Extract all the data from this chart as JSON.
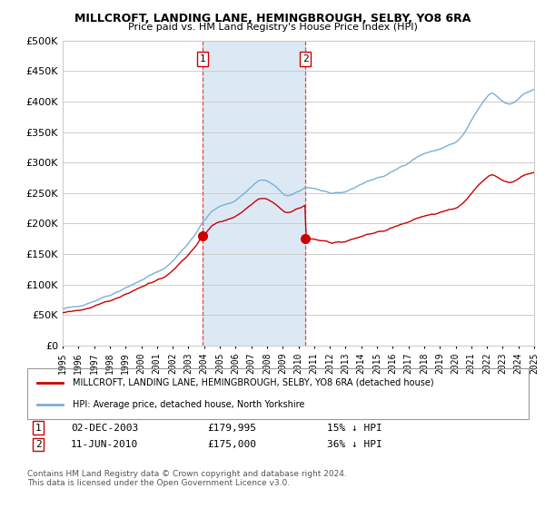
{
  "title": "MILLCROFT, LANDING LANE, HEMINGBROUGH, SELBY, YO8 6RA",
  "subtitle": "Price paid vs. HM Land Registry's House Price Index (HPI)",
  "legend_line1": "MILLCROFT, LANDING LANE, HEMINGBROUGH, SELBY, YO8 6RA (detached house)",
  "legend_line2": "HPI: Average price, detached house, North Yorkshire",
  "footnote": "Contains HM Land Registry data © Crown copyright and database right 2024.\nThis data is licensed under the Open Government Licence v3.0.",
  "sale1_label": "1",
  "sale1_date": "02-DEC-2003",
  "sale1_price": "£179,995",
  "sale1_hpi": "15% ↓ HPI",
  "sale2_label": "2",
  "sale2_date": "11-JUN-2010",
  "sale2_price": "£175,000",
  "sale2_hpi": "36% ↓ HPI",
  "sale1_x": 2003.92,
  "sale1_price_val": 179995,
  "sale2_x": 2010.44,
  "sale2_price_val": 175000,
  "background_color": "#ffffff",
  "highlight_color": "#dce9f5",
  "grid_color": "#cccccc",
  "hpi_line_color": "#7bafd4",
  "sale_line_color": "#cc0000",
  "sale_marker_color": "#cc0000",
  "dashed_line_color": "#ee4444",
  "ylim": [
    0,
    500000
  ],
  "yticks": [
    0,
    50000,
    100000,
    150000,
    200000,
    250000,
    300000,
    350000,
    400000,
    450000,
    500000
  ],
  "xmin": 1995,
  "xmax": 2025,
  "hpi_base_years": [
    1995.0,
    1995.5,
    1996.0,
    1996.5,
    1997.0,
    1997.5,
    1998.0,
    1998.5,
    1999.0,
    1999.5,
    2000.0,
    2000.5,
    2001.0,
    2001.5,
    2002.0,
    2002.5,
    2003.0,
    2003.5,
    2004.0,
    2004.5,
    2005.0,
    2005.5,
    2006.0,
    2006.5,
    2007.0,
    2007.3,
    2007.6,
    2008.0,
    2008.5,
    2009.0,
    2009.5,
    2010.0,
    2010.5,
    2011.0,
    2011.5,
    2012.0,
    2012.5,
    2013.0,
    2013.5,
    2014.0,
    2014.5,
    2015.0,
    2015.5,
    2016.0,
    2016.5,
    2017.0,
    2017.5,
    2018.0,
    2018.5,
    2019.0,
    2019.5,
    2020.0,
    2020.5,
    2021.0,
    2021.5,
    2022.0,
    2022.3,
    2022.6,
    2023.0,
    2023.5,
    2024.0,
    2024.5,
    2025.0
  ],
  "hpi_base_values": [
    60000,
    62000,
    65000,
    68000,
    73000,
    78000,
    83000,
    88000,
    95000,
    100000,
    107000,
    114000,
    120000,
    127000,
    138000,
    153000,
    168000,
    185000,
    205000,
    220000,
    228000,
    232000,
    238000,
    248000,
    260000,
    268000,
    272000,
    270000,
    262000,
    248000,
    245000,
    252000,
    260000,
    258000,
    254000,
    250000,
    248000,
    252000,
    258000,
    265000,
    270000,
    275000,
    278000,
    285000,
    293000,
    300000,
    308000,
    315000,
    318000,
    322000,
    328000,
    332000,
    345000,
    368000,
    390000,
    408000,
    415000,
    410000,
    400000,
    395000,
    405000,
    415000,
    420000
  ]
}
